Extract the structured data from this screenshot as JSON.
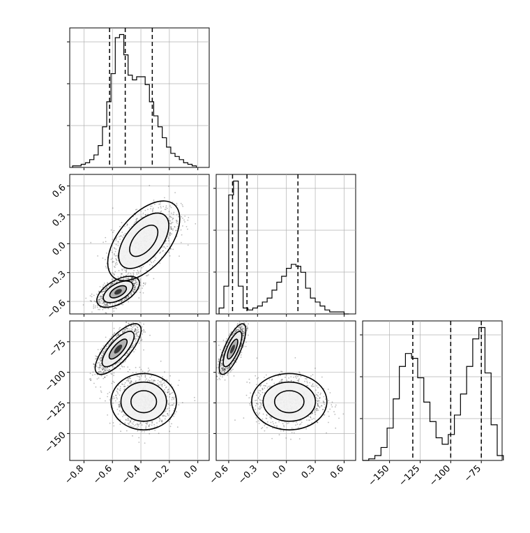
{
  "chart_data": {
    "type": "corner",
    "title": "",
    "n_parameters": 3,
    "colors": {
      "ink": "#000000",
      "grid": "#b0b0b0",
      "scatter": "#3a3a3a"
    },
    "grid": true,
    "axes_ranges": [
      [
        -0.9,
        0.08
      ],
      [
        -0.73,
        0.72
      ],
      [
        -172,
        -58
      ]
    ],
    "tick_labels": [
      [
        "−0.8",
        "−0.6",
        "−0.4",
        "−0.2",
        "0.0"
      ],
      [
        "−0.6",
        "−0.3",
        "0.0",
        "0.3",
        "0.6"
      ],
      [
        "−150",
        "−125",
        "−100",
        "−75"
      ]
    ],
    "tick_values": [
      [
        -0.8,
        -0.6,
        -0.4,
        -0.2,
        0.0
      ],
      [
        -0.6,
        -0.3,
        0.0,
        0.3,
        0.6
      ],
      [
        -150,
        -125,
        -100,
        -75
      ]
    ],
    "histograms": [
      {
        "param": 0,
        "bins": [
          -0.88,
          -0.85,
          -0.82,
          -0.79,
          -0.76,
          -0.73,
          -0.7,
          -0.67,
          -0.64,
          -0.61,
          -0.58,
          -0.55,
          -0.52,
          -0.49,
          -0.46,
          -0.43,
          -0.4,
          -0.37,
          -0.34,
          -0.31,
          -0.28,
          -0.25,
          -0.22,
          -0.19,
          -0.16,
          -0.13,
          -0.1,
          -0.07,
          -0.04,
          -0.01
        ],
        "counts": [
          1,
          1,
          2,
          3,
          5,
          8,
          14,
          26,
          42,
          60,
          83,
          85,
          72,
          59,
          56,
          58,
          58,
          53,
          42,
          33,
          26,
          19,
          13,
          9,
          7,
          5,
          3,
          2,
          1
        ],
        "quantiles": [
          -0.62,
          -0.51,
          -0.32
        ]
      },
      {
        "param": 1,
        "bins": [
          -0.7,
          -0.65,
          -0.6,
          -0.55,
          -0.5,
          -0.45,
          -0.4,
          -0.35,
          -0.3,
          -0.25,
          -0.2,
          -0.15,
          -0.1,
          -0.05,
          0.0,
          0.05,
          0.1,
          0.15,
          0.2,
          0.25,
          0.3,
          0.35,
          0.4,
          0.45,
          0.5,
          0.55,
          0.6,
          0.65
        ],
        "counts": [
          3,
          14,
          60,
          67,
          14,
          3,
          2,
          3,
          4,
          6,
          8,
          12,
          16,
          19,
          23,
          25,
          24,
          21,
          13,
          8,
          6,
          4,
          2,
          1,
          1,
          1,
          0
        ],
        "quantiles": [
          -0.56,
          -0.41,
          0.12
        ]
      },
      {
        "param": 2,
        "bins": [
          -172,
          -167,
          -162,
          -157,
          -152,
          -147,
          -142,
          -137,
          -132,
          -127,
          -122,
          -117,
          -112,
          -107,
          -102,
          -97,
          -92,
          -87,
          -82,
          -77,
          -72,
          -67,
          -62,
          -57
        ],
        "counts": [
          0,
          1,
          3,
          8,
          20,
          38,
          58,
          66,
          63,
          51,
          36,
          24,
          14,
          10,
          16,
          28,
          41,
          58,
          75,
          82,
          54,
          22,
          3
        ],
        "quantiles": [
          -131,
          -100,
          -75
        ]
      }
    ],
    "joint_panels": [
      {
        "x_param": 0,
        "y_param": 1,
        "modes": [
          {
            "cx": -0.56,
            "cy": -0.5,
            "sx": 0.065,
            "sy": 0.07,
            "rho": 0.55,
            "weight": 0.55
          },
          {
            "cx": -0.38,
            "cy": 0.03,
            "sx": 0.11,
            "sy": 0.18,
            "rho": 0.55,
            "weight": 0.45
          }
        ]
      },
      {
        "x_param": 0,
        "y_param": 2,
        "modes": [
          {
            "cx": -0.56,
            "cy": -81,
            "sx": 0.07,
            "sy": 9,
            "rho": 0.75,
            "weight": 0.55
          },
          {
            "cx": -0.38,
            "cy": -124,
            "sx": 0.1,
            "sy": 10,
            "rho": 0.0,
            "weight": 0.45
          }
        ]
      },
      {
        "x_param": 1,
        "y_param": 2,
        "modes": [
          {
            "cx": -0.56,
            "cy": -81,
            "sx": 0.06,
            "sy": 9,
            "rho": 0.75,
            "weight": 0.55
          },
          {
            "cx": 0.03,
            "cy": -124,
            "sx": 0.17,
            "sy": 10,
            "rho": 0.0,
            "weight": 0.45
          }
        ]
      }
    ]
  }
}
